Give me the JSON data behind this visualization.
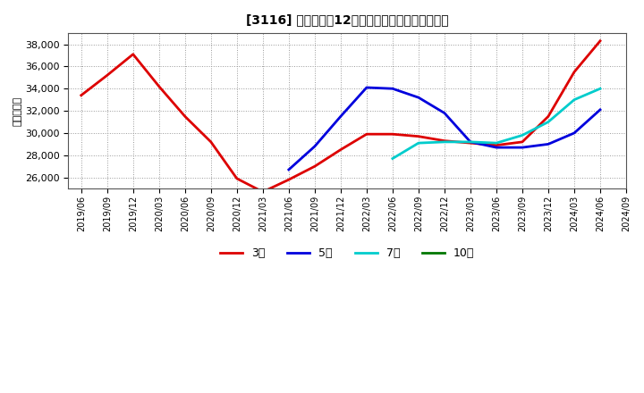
{
  "title": "[3116] 当期純利益12か月移動合計の平均値の推移",
  "ylabel": "（百万円）",
  "background_color": "#ffffff",
  "grid_color": "#999999",
  "ylim": [
    25000,
    39000
  ],
  "yticks": [
    26000,
    28000,
    30000,
    32000,
    34000,
    36000,
    38000
  ],
  "series": {
    "3年": {
      "color": "#dd0000",
      "data_x": [
        0,
        1,
        2,
        3,
        4,
        5,
        6,
        7,
        8,
        9,
        10,
        11,
        12,
        13,
        14,
        15,
        16,
        17,
        18,
        19,
        20
      ],
      "data_y": [
        33400,
        35200,
        37100,
        34200,
        31500,
        29200,
        25900,
        24700,
        25800,
        27000,
        28500,
        29900,
        29900,
        29700,
        29300,
        29100,
        28900,
        29200,
        31500,
        35500,
        38300
      ]
    },
    "5年": {
      "color": "#0000dd",
      "data_x": [
        8,
        9,
        10,
        11,
        12,
        13,
        14,
        15,
        16,
        17,
        18,
        19,
        20
      ],
      "data_y": [
        26700,
        28800,
        31500,
        34100,
        34000,
        33200,
        31800,
        29200,
        28700,
        28700,
        29000,
        30000,
        32100
      ]
    },
    "7年": {
      "color": "#00cccc",
      "data_x": [
        12,
        13,
        14,
        15,
        16,
        17,
        18,
        19,
        20
      ],
      "data_y": [
        27700,
        29100,
        29200,
        29200,
        29100,
        29800,
        31000,
        33000,
        34000
      ]
    },
    "10年": {
      "color": "#007700",
      "data_x": [],
      "data_y": []
    }
  },
  "xtick_labels": [
    "2019/06",
    "2019/09",
    "2019/12",
    "2020/03",
    "2020/06",
    "2020/09",
    "2020/12",
    "2021/03",
    "2021/06",
    "2021/09",
    "2021/12",
    "2022/03",
    "2022/06",
    "2022/09",
    "2022/12",
    "2023/03",
    "2023/06",
    "2023/09",
    "2023/12",
    "2024/03",
    "2024/06",
    "2024/09"
  ],
  "legend_labels": [
    "3年",
    "5年",
    "7年",
    "10年"
  ],
  "legend_colors": [
    "#dd0000",
    "#0000dd",
    "#00cccc",
    "#007700"
  ],
  "n_xticks": 22
}
